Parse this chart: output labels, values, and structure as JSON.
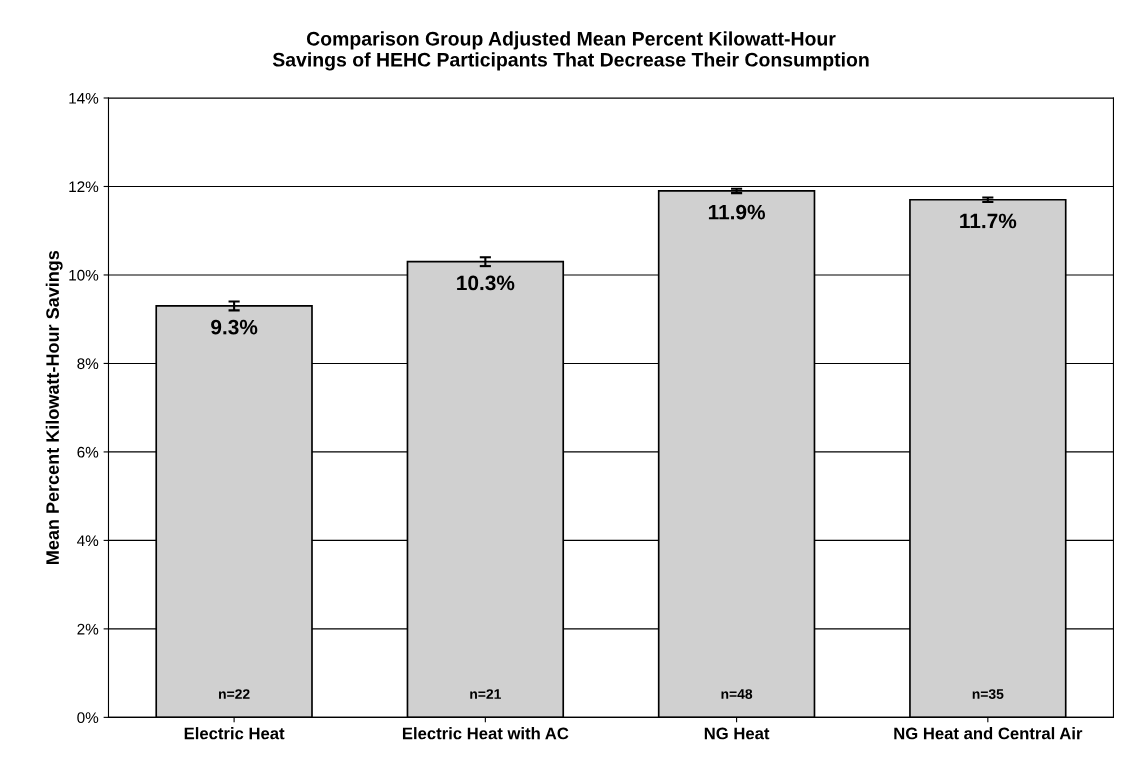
{
  "chart_data": {
    "type": "bar",
    "title": "Comparison Group Adjusted Mean Percent Kilowatt-Hour\nSavings of HEHC Participants That Decrease Their Consumption",
    "ylabel": "Mean Percent Kilowatt-Hour Savings",
    "categories": [
      "Electric Heat",
      "Electric Heat with AC",
      "NG Heat",
      "NG Heat and Central Air"
    ],
    "values": [
      9.3,
      10.3,
      11.9,
      11.7
    ],
    "value_labels": [
      "9.3%",
      "10.3%",
      "11.9%",
      "11.7%"
    ],
    "errors": [
      0.1,
      0.1,
      0.05,
      0.05
    ],
    "color": "#d0d0d0",
    "ylim": [
      0,
      14
    ],
    "yticks": [
      {
        "value": 0,
        "label": "0%"
      },
      {
        "value": 2,
        "label": "2%"
      },
      {
        "value": 4,
        "label": "4%"
      },
      {
        "value": 6,
        "label": "6%"
      },
      {
        "value": 8,
        "label": "8%"
      },
      {
        "value": 10,
        "label": "10%"
      },
      {
        "value": 12,
        "label": "12%"
      },
      {
        "value": 14,
        "label": "14%"
      }
    ],
    "grid": "y",
    "annotations": [
      "n=22",
      "n=21",
      "n=48",
      "n=35"
    ]
  }
}
